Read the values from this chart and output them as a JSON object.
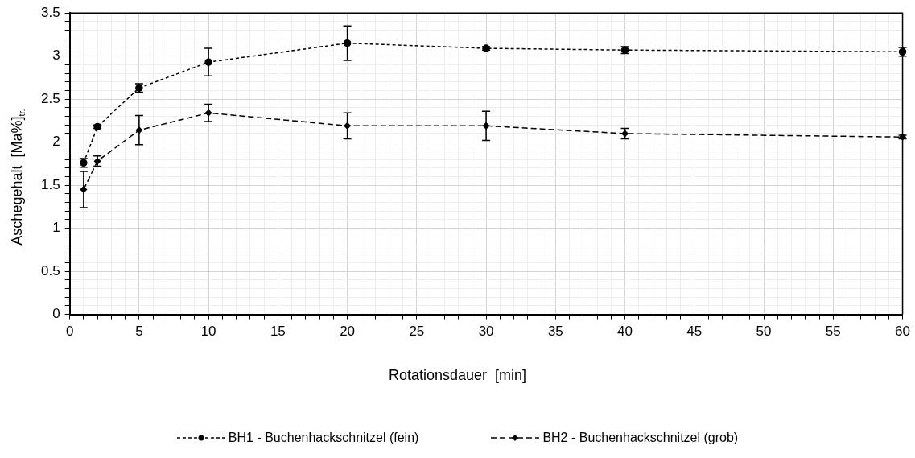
{
  "chart_data": {
    "type": "line",
    "xlabel": "Rotationsdauer  [min]",
    "ylabel": "Aschegehalt  [Ma%]$_{tr.}$",
    "x": [
      1,
      2,
      5,
      10,
      20,
      30,
      40,
      60
    ],
    "series": [
      {
        "name": "BH1 - Buchenhackschnitzel (fein)",
        "color": "#000000",
        "marker": "circle",
        "line_style": "dotted",
        "values": [
          1.76,
          2.18,
          2.63,
          2.93,
          3.15,
          3.09,
          3.07,
          3.05
        ],
        "errors": [
          0.05,
          0.02,
          0.05,
          0.16,
          0.2,
          0.02,
          0.04,
          0.05
        ]
      },
      {
        "name": "BH2 - Buchenhackschnitzel (grob)",
        "color": "#000000",
        "marker": "diamond",
        "line_style": "dashed",
        "values": [
          1.45,
          1.78,
          2.14,
          2.34,
          2.19,
          2.19,
          2.1,
          2.06
        ],
        "errors": [
          0.21,
          0.06,
          0.17,
          0.1,
          0.15,
          0.17,
          0.06,
          0.02
        ]
      }
    ],
    "xlim": [
      0,
      60
    ],
    "xticks": [
      0,
      {
        "value": 1,
        "label": null
      },
      {
        "value": 2,
        "label": null
      },
      {
        "value": 3,
        "label": null
      },
      {
        "value": 4,
        "label": null
      },
      5,
      {
        "value": 6,
        "label": null
      },
      {
        "value": 7,
        "label": null
      },
      {
        "value": 8,
        "label": null
      },
      {
        "value": 9,
        "label": null
      },
      10,
      {
        "value": 11,
        "label": null
      },
      {
        "value": 12,
        "label": null
      },
      {
        "value": 13,
        "label": null
      },
      {
        "value": 14,
        "label": null
      },
      15,
      {
        "value": 16,
        "label": null
      },
      {
        "value": 17,
        "label": null
      },
      {
        "value": 18,
        "label": null
      },
      {
        "value": 19,
        "label": null
      },
      20,
      {
        "value": 21,
        "label": null
      },
      {
        "value": 22,
        "label": null
      },
      {
        "value": 23,
        "label": null
      },
      {
        "value": 24,
        "label": null
      },
      25,
      {
        "value": 26,
        "label": null
      },
      {
        "value": 27,
        "label": null
      },
      {
        "value": 28,
        "label": null
      },
      {
        "value": 29,
        "label": null
      },
      30,
      {
        "value": 31,
        "label": null
      },
      {
        "value": 32,
        "label": null
      },
      {
        "value": 33,
        "label": null
      },
      {
        "value": 34,
        "label": null
      },
      35,
      {
        "value": 36,
        "label": null
      },
      {
        "value": 37,
        "label": null
      },
      {
        "value": 38,
        "label": null
      },
      {
        "value": 39,
        "label": null
      },
      40,
      {
        "value": 41,
        "label": null
      },
      {
        "value": 42,
        "label": null
      },
      {
        "value": 43,
        "label": null
      },
      {
        "value": 44,
        "label": null
      },
      45,
      {
        "value": 46,
        "label": null
      },
      {
        "value": 47,
        "label": null
      },
      {
        "value": 48,
        "label": null
      },
      {
        "value": 49,
        "label": null
      },
      50,
      {
        "value": 51,
        "label": null
      },
      {
        "value": 52,
        "label": null
      },
      {
        "value": 53,
        "label": null
      },
      {
        "value": 54,
        "label": null
      },
      55,
      {
        "value": 56,
        "label": null
      },
      {
        "value": 57,
        "label": null
      },
      {
        "value": 58,
        "label": null
      },
      {
        "value": 59,
        "label": null
      },
      60
    ],
    "ylim": [
      0,
      3.5
    ],
    "yticks": [
      0,
      {
        "value": 0.1,
        "label": null
      },
      {
        "value": 0.2,
        "label": null
      },
      {
        "value": 0.3,
        "label": null
      },
      {
        "value": 0.4,
        "label": null
      },
      0.5,
      {
        "value": 0.6,
        "label": null
      },
      {
        "value": 0.7,
        "label": null
      },
      {
        "value": 0.8,
        "label": null
      },
      {
        "value": 0.9,
        "label": null
      },
      1,
      {
        "value": 1.1,
        "label": null
      },
      {
        "value": 1.2,
        "label": null
      },
      {
        "value": 1.3,
        "label": null
      },
      {
        "value": 1.4,
        "label": null
      },
      1.5,
      {
        "value": 1.6,
        "label": null
      },
      {
        "value": 1.7,
        "label": null
      },
      {
        "value": 1.8,
        "label": null
      },
      {
        "value": 1.9,
        "label": null
      },
      2,
      {
        "value": 2.1,
        "label": null
      },
      {
        "value": 2.2,
        "label": null
      },
      {
        "value": 2.3,
        "label": null
      },
      {
        "value": 2.4,
        "label": null
      },
      2.5,
      {
        "value": 2.6,
        "label": null
      },
      {
        "value": 2.7,
        "label": null
      },
      {
        "value": 2.8,
        "label": null
      },
      {
        "value": 2.9,
        "label": null
      },
      3,
      {
        "value": 3.1,
        "label": null
      },
      {
        "value": 3.2,
        "label": null
      },
      {
        "value": 3.3,
        "label": null
      },
      {
        "value": 3.4,
        "label": null
      },
      3.5
    ],
    "grid": true,
    "legend": "bottom"
  }
}
